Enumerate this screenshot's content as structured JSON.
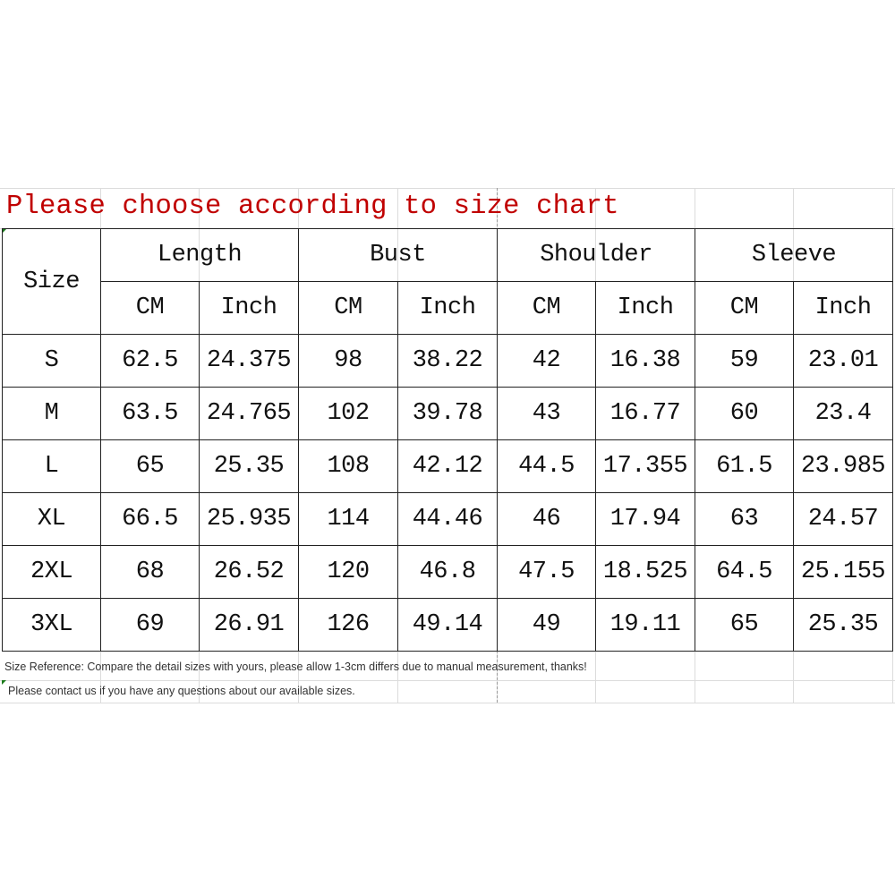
{
  "title": "Please choose according to size chart",
  "table": {
    "size_header": "Size",
    "groups": [
      "Length",
      "Bust",
      "Shoulder",
      "Sleeve"
    ],
    "units": [
      "CM",
      "Inch",
      "CM",
      "Inch",
      "CM",
      "Inch",
      "CM",
      "Inch"
    ],
    "rows": [
      [
        "S",
        "62.5",
        "24.375",
        "98",
        "38.22",
        "42",
        "16.38",
        "59",
        "23.01"
      ],
      [
        "M",
        "63.5",
        "24.765",
        "102",
        "39.78",
        "43",
        "16.77",
        "60",
        "23.4"
      ],
      [
        "L",
        "65",
        "25.35",
        "108",
        "42.12",
        "44.5",
        "17.355",
        "61.5",
        "23.985"
      ],
      [
        "XL",
        "66.5",
        "25.935",
        "114",
        "44.46",
        "46",
        "17.94",
        "63",
        "24.57"
      ],
      [
        "2XL",
        "68",
        "26.52",
        "120",
        "46.8",
        "47.5",
        "18.525",
        "64.5",
        "25.155"
      ],
      [
        "3XL",
        "69",
        "26.91",
        "126",
        "49.14",
        "49",
        "19.11",
        "65",
        "25.35"
      ]
    ]
  },
  "notes": [
    "Size Reference: Compare the detail sizes with yours, please allow 1-3cm differs due to manual measurement, thanks!",
    "Please contact us if you have any questions about our available sizes."
  ],
  "colors": {
    "title": "#c00000",
    "border": "#222222"
  }
}
